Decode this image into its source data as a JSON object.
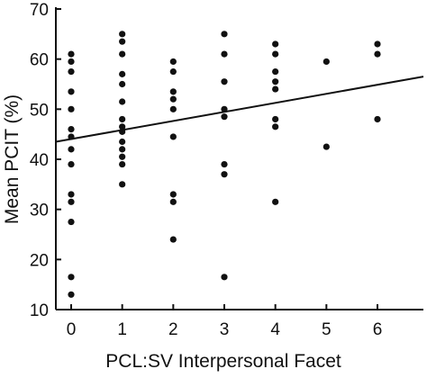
{
  "chart_data": {
    "type": "scatter",
    "title": "",
    "xlabel": "PCL:SV Interpersonal Facet",
    "ylabel": "Mean PCIT (%)",
    "xlim": [
      -0.3,
      6.9
    ],
    "ylim": [
      10,
      70
    ],
    "x_ticks": [
      0,
      1,
      2,
      3,
      4,
      5,
      6
    ],
    "y_ticks": [
      10,
      20,
      30,
      40,
      50,
      60,
      70
    ],
    "grid": false,
    "point_color": "#111111",
    "series": [
      {
        "points": [
          [
            0,
            61.0
          ],
          [
            0,
            59.5
          ],
          [
            0,
            57.5
          ],
          [
            0,
            53.5
          ],
          [
            0,
            50.0
          ],
          [
            0,
            46.0
          ],
          [
            0,
            44.5
          ],
          [
            0,
            42.0
          ],
          [
            0,
            39.0
          ],
          [
            0,
            33.0
          ],
          [
            0,
            31.5
          ],
          [
            0,
            27.5
          ],
          [
            0,
            16.5
          ],
          [
            0,
            13.0
          ],
          [
            1,
            65.0
          ],
          [
            1,
            63.5
          ],
          [
            1,
            61.0
          ],
          [
            1,
            57.0
          ],
          [
            1,
            55.0
          ],
          [
            1,
            51.5
          ],
          [
            1,
            48.0
          ],
          [
            1,
            46.5
          ],
          [
            1,
            45.5
          ],
          [
            1,
            43.5
          ],
          [
            1,
            42.0
          ],
          [
            1,
            40.5
          ],
          [
            1,
            39.0
          ],
          [
            1,
            35.0
          ],
          [
            2,
            59.5
          ],
          [
            2,
            57.5
          ],
          [
            2,
            53.5
          ],
          [
            2,
            52.0
          ],
          [
            2,
            50.0
          ],
          [
            2,
            44.5
          ],
          [
            2,
            33.0
          ],
          [
            2,
            31.5
          ],
          [
            2,
            24.0
          ],
          [
            3,
            65.0
          ],
          [
            3,
            61.0
          ],
          [
            3,
            55.5
          ],
          [
            3,
            50.0
          ],
          [
            3,
            48.5
          ],
          [
            3,
            39.0
          ],
          [
            3,
            37.0
          ],
          [
            3,
            16.5
          ],
          [
            4,
            63.0
          ],
          [
            4,
            61.0
          ],
          [
            4,
            57.5
          ],
          [
            4,
            55.5
          ],
          [
            4,
            54.0
          ],
          [
            4,
            48.0
          ],
          [
            4,
            46.5
          ],
          [
            4,
            31.5
          ],
          [
            5,
            59.5
          ],
          [
            5,
            42.5
          ],
          [
            6,
            63.0
          ],
          [
            6,
            61.0
          ],
          [
            6,
            48.0
          ]
        ]
      }
    ],
    "trendline": {
      "x": [
        -0.3,
        6.9
      ],
      "y": [
        43.5,
        56.5
      ]
    }
  }
}
